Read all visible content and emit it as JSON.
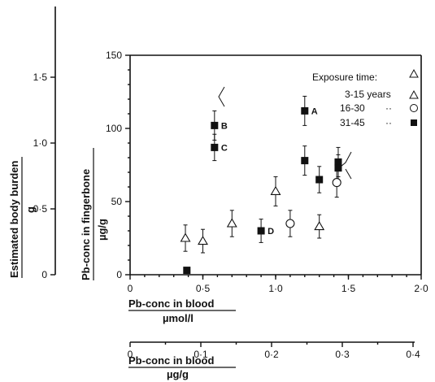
{
  "chart_data": {
    "type": "scatter",
    "title": "",
    "xlabel": "Pb-conc in blood",
    "xunit": "µmol/l",
    "ylabel": "Pb-conc in fingerbone",
    "yunit": "µg/g",
    "xlim": [
      0,
      2.0
    ],
    "ylim": [
      0,
      150
    ],
    "x_ticks": [
      0,
      0.5,
      1.0,
      1.5,
      2.0
    ],
    "x_tick_labels": [
      "0",
      "0·5",
      "1·0",
      "1·5",
      "2·0"
    ],
    "y_ticks": [
      0,
      50,
      100,
      150
    ],
    "y_tick_labels": [
      "0",
      "50",
      "100",
      "150"
    ],
    "secondary_y_axis": {
      "label": "Estimated body burden",
      "unit": "g",
      "ticks": [
        0,
        0.5,
        1.0,
        1.5
      ],
      "tick_labels": [
        "0",
        "0·5",
        "1·0",
        "1·5"
      ]
    },
    "secondary_x_axis": {
      "label": "Pb-conc in blood",
      "unit": "µg/g",
      "ticks": [
        0,
        0.1,
        0.2,
        0.3,
        0.4
      ],
      "tick_labels": [
        "0",
        "0·1",
        "0·2",
        "0·3",
        "0·4"
      ]
    },
    "legend": {
      "title": "Exposure time:",
      "position": "top-right",
      "entries": [
        {
          "label": "3-15 years",
          "marker": "triangle-open"
        },
        {
          "label": "16-30",
          "ditto": "··",
          "marker": "circle-open"
        },
        {
          "label": "31-45",
          "ditto": "··",
          "marker": "square-filled"
        }
      ]
    },
    "series": [
      {
        "name": "3-15 years",
        "marker": "triangle-open",
        "points": [
          {
            "x": 0.38,
            "y": 25,
            "err": 9
          },
          {
            "x": 0.5,
            "y": 23,
            "err": 8
          },
          {
            "x": 0.7,
            "y": 35,
            "err": 9
          },
          {
            "x": 1.0,
            "y": 57,
            "err": 10
          },
          {
            "x": 1.3,
            "y": 33,
            "err": 8
          }
        ]
      },
      {
        "name": "16-30",
        "marker": "circle-open",
        "points": [
          {
            "x": 1.1,
            "y": 35,
            "err": 9
          },
          {
            "x": 1.42,
            "y": 63,
            "err": 10
          }
        ]
      },
      {
        "name": "31-45",
        "marker": "square-filled",
        "points": [
          {
            "x": 0.39,
            "y": 3,
            "err": 0
          },
          {
            "x": 0.58,
            "y": 102,
            "err": 10,
            "label": "B"
          },
          {
            "x": 0.58,
            "y": 87,
            "err": 9,
            "label": "C"
          },
          {
            "x": 0.9,
            "y": 30,
            "err": 8,
            "label": "D"
          },
          {
            "x": 1.2,
            "y": 112,
            "err": 10,
            "label": "A"
          },
          {
            "x": 1.2,
            "y": 78,
            "err": 10
          },
          {
            "x": 1.3,
            "y": 65,
            "err": 9
          },
          {
            "x": 1.43,
            "y": 77,
            "err": 10
          },
          {
            "x": 1.43,
            "y": 73,
            "err": 9
          }
        ]
      }
    ]
  }
}
